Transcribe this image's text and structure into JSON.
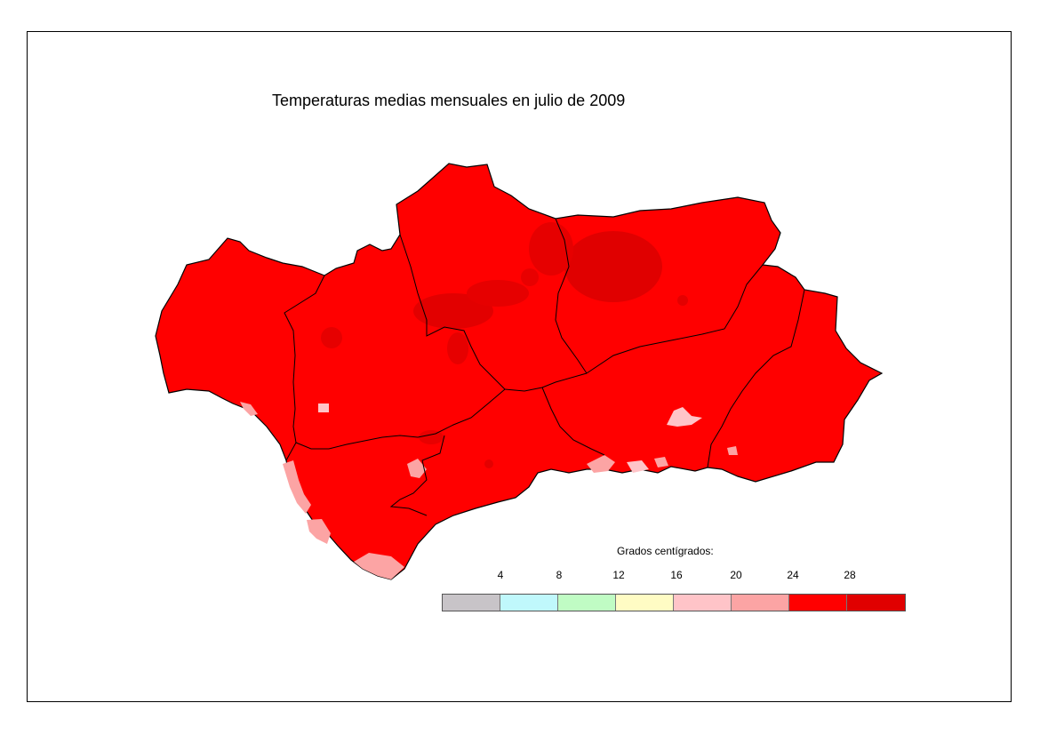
{
  "title": "Temperaturas medias mensuales en julio de 2009",
  "legend": {
    "title": "Grados centígrados:",
    "ticks": [
      "4",
      "8",
      "12",
      "16",
      "20",
      "24",
      "28"
    ],
    "classes": [
      {
        "range": "< 4",
        "color": "#c8c4c8"
      },
      {
        "range": "4-8",
        "color": "#c0f8fc"
      },
      {
        "range": "8-12",
        "color": "#c0fcc4"
      },
      {
        "range": "12-16",
        "color": "#fffcc4"
      },
      {
        "range": "16-20",
        "color": "#ffc4c8"
      },
      {
        "range": "20-24",
        "color": "#fca4a4"
      },
      {
        "range": "24-28",
        "color": "#ff0000"
      },
      {
        "range": "> 28",
        "color": "#e00000"
      }
    ]
  },
  "map": {
    "region": "Andalucía",
    "dominant_color": "#ff0000",
    "hot_color": "#e00000",
    "mild_color": "#fca4a4",
    "light_color": "#ffc4c8"
  }
}
